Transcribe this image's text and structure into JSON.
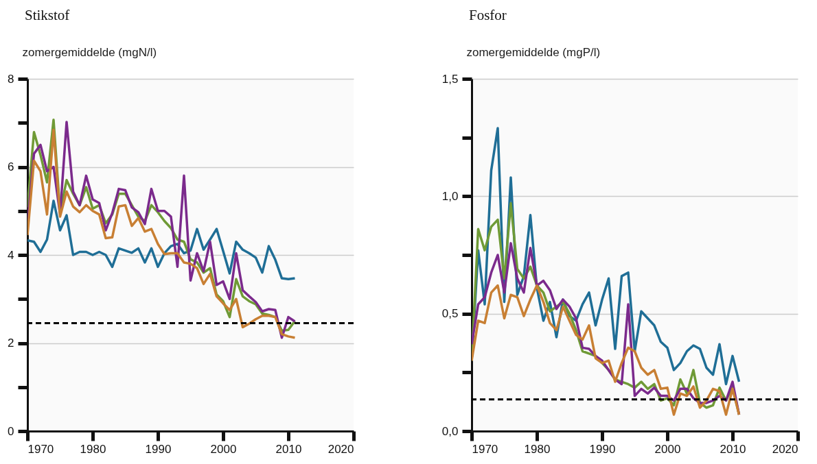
{
  "chart_data": [
    {
      "type": "line",
      "title": "Stikstof",
      "ylabel": "zomergemiddelde (mgN/l)",
      "x": [
        1970,
        1971,
        1972,
        1973,
        1974,
        1975,
        1976,
        1977,
        1978,
        1979,
        1980,
        1981,
        1982,
        1983,
        1984,
        1985,
        1986,
        1987,
        1988,
        1989,
        1990,
        1991,
        1992,
        1993,
        1994,
        1995,
        1996,
        1997,
        1998,
        1999,
        2000,
        2001,
        2002,
        2003,
        2004,
        2005,
        2006,
        2007,
        2008,
        2009,
        2010,
        2011
      ],
      "series": [
        {
          "color": "#1f6e96",
          "values": [
            4.33,
            4.3,
            4.07,
            4.35,
            5.23,
            4.56,
            4.9,
            4.0,
            4.07,
            4.07,
            4.0,
            4.07,
            4.0,
            3.73,
            4.15,
            4.1,
            4.05,
            4.15,
            3.83,
            4.15,
            3.73,
            4.04,
            4.2,
            4.25,
            4.04,
            4.1,
            4.59,
            4.12,
            4.35,
            4.59,
            4.09,
            3.58,
            4.3,
            4.12,
            4.04,
            3.94,
            3.6,
            4.2,
            3.89,
            3.47,
            3.45,
            3.47
          ]
        },
        {
          "color": "#6f9a36",
          "values": [
            5.08,
            6.79,
            6.27,
            5.65,
            7.07,
            4.97,
            5.7,
            5.39,
            5.13,
            5.54,
            5.05,
            5.13,
            4.72,
            4.92,
            5.39,
            5.39,
            5.13,
            4.87,
            4.77,
            5.13,
            4.97,
            4.77,
            4.61,
            4.35,
            4.3,
            3.9,
            3.83,
            3.6,
            3.7,
            3.1,
            2.95,
            2.59,
            3.45,
            3.06,
            2.95,
            2.88,
            2.67,
            2.64,
            2.59,
            2.28,
            2.3,
            2.5
          ]
        },
        {
          "color": "#7b2a8c",
          "values": [
            4.7,
            6.3,
            6.5,
            5.9,
            6.0,
            4.92,
            7.02,
            5.44,
            5.13,
            5.8,
            5.26,
            5.18,
            4.56,
            4.95,
            5.5,
            5.47,
            5.08,
            4.97,
            4.7,
            5.5,
            5.0,
            5.0,
            4.87,
            3.73,
            5.8,
            3.42,
            4.04,
            3.63,
            4.3,
            3.32,
            3.4,
            3.0,
            4.04,
            3.2,
            3.06,
            2.93,
            2.72,
            2.77,
            2.75,
            2.12,
            2.59,
            2.49
          ]
        },
        {
          "color": "#c87f33",
          "values": [
            4.45,
            6.14,
            5.9,
            4.92,
            6.84,
            4.87,
            5.44,
            5.1,
            4.97,
            5.13,
            5.0,
            4.92,
            4.38,
            4.4,
            5.1,
            5.13,
            4.66,
            4.84,
            4.53,
            4.59,
            4.25,
            4.02,
            4.04,
            4.04,
            3.83,
            3.8,
            3.7,
            3.34,
            3.57,
            3.06,
            2.9,
            2.75,
            3.0,
            2.36,
            2.44,
            2.54,
            2.62,
            2.62,
            2.59,
            2.2,
            2.15,
            2.12
          ]
        }
      ],
      "xlim": [
        1970,
        2020
      ],
      "xticks": [
        1970,
        1980,
        1990,
        2000,
        2010,
        2020
      ],
      "ylim": [
        0,
        8
      ],
      "yticks": [
        0,
        {
          "value": 1,
          "label": null
        },
        2,
        {
          "value": 3,
          "label": null
        },
        4,
        {
          "value": 5,
          "label": null
        },
        6,
        {
          "value": 7,
          "label": null
        },
        8
      ],
      "grid": "y",
      "legend": false,
      "line_style": "solid",
      "ref_lines": [
        {
          "axis": "y",
          "value": 2.45,
          "color": "#000000",
          "line_style": "dashed"
        }
      ]
    },
    {
      "type": "line",
      "title": "Fosfor",
      "ylabel": "zomergemiddelde (mgP/l)",
      "x": [
        1970,
        1971,
        1972,
        1973,
        1974,
        1975,
        1976,
        1977,
        1978,
        1979,
        1980,
        1981,
        1982,
        1983,
        1984,
        1985,
        1986,
        1987,
        1988,
        1989,
        1990,
        1991,
        1992,
        1993,
        1994,
        1995,
        1996,
        1997,
        1998,
        1999,
        2000,
        2001,
        2002,
        2003,
        2004,
        2005,
        2006,
        2007,
        2008,
        2009,
        2010,
        2011
      ],
      "series": [
        {
          "color": "#1f6e96",
          "values": [
            0.3,
            0.77,
            0.54,
            1.11,
            1.29,
            0.55,
            1.08,
            0.58,
            0.66,
            0.92,
            0.61,
            0.47,
            0.55,
            0.4,
            0.56,
            0.49,
            0.47,
            0.54,
            0.59,
            0.45,
            0.56,
            0.65,
            0.35,
            0.66,
            0.675,
            0.34,
            0.51,
            0.48,
            0.45,
            0.38,
            0.355,
            0.26,
            0.29,
            0.34,
            0.365,
            0.35,
            0.27,
            0.24,
            0.37,
            0.2,
            0.32,
            0.21
          ]
        },
        {
          "color": "#6f9a36",
          "values": [
            0.3,
            0.86,
            0.77,
            0.87,
            0.9,
            0.65,
            0.97,
            0.69,
            0.65,
            0.7,
            0.62,
            0.59,
            0.51,
            0.53,
            0.55,
            0.5,
            0.43,
            0.34,
            0.33,
            0.32,
            0.29,
            0.26,
            0.22,
            0.21,
            0.2,
            0.185,
            0.21,
            0.18,
            0.2,
            0.13,
            0.14,
            0.11,
            0.22,
            0.16,
            0.26,
            0.12,
            0.1,
            0.11,
            0.185,
            0.13,
            0.19,
            0.07
          ]
        },
        {
          "color": "#7b2a8c",
          "values": [
            0.37,
            0.54,
            0.57,
            0.675,
            0.75,
            0.59,
            0.8,
            0.65,
            0.59,
            0.78,
            0.62,
            0.64,
            0.6,
            0.52,
            0.56,
            0.53,
            0.48,
            0.355,
            0.35,
            0.32,
            0.3,
            0.26,
            0.22,
            0.2,
            0.54,
            0.15,
            0.18,
            0.16,
            0.185,
            0.15,
            0.15,
            0.13,
            0.18,
            0.18,
            0.14,
            0.12,
            0.12,
            0.13,
            0.15,
            0.13,
            0.21,
            0.07
          ]
        },
        {
          "color": "#c87f33",
          "values": [
            0.3,
            0.47,
            0.46,
            0.59,
            0.62,
            0.48,
            0.58,
            0.57,
            0.49,
            0.56,
            0.62,
            0.55,
            0.46,
            0.43,
            0.53,
            0.47,
            0.41,
            0.39,
            0.45,
            0.31,
            0.29,
            0.3,
            0.21,
            0.29,
            0.355,
            0.34,
            0.27,
            0.24,
            0.26,
            0.18,
            0.185,
            0.07,
            0.16,
            0.15,
            0.19,
            0.1,
            0.13,
            0.18,
            0.17,
            0.07,
            0.18,
            0.07
          ]
        }
      ],
      "xlim": [
        1970,
        2020
      ],
      "xticks": [
        1970,
        1980,
        1990,
        2000,
        2010,
        2020
      ],
      "ylim": [
        0,
        1.5
      ],
      "yticks": [
        {
          "value": 0,
          "label": "0,0"
        },
        {
          "value": 0.25,
          "label": null
        },
        {
          "value": 0.5,
          "label": "0,5"
        },
        {
          "value": 0.75,
          "label": null
        },
        {
          "value": 1,
          "label": "1,0"
        },
        {
          "value": 1.25,
          "label": null
        },
        {
          "value": 1.5,
          "label": "1,5"
        }
      ],
      "grid": "y",
      "legend": false,
      "line_style": "solid",
      "ref_lines": [
        {
          "axis": "y",
          "value": 0.135,
          "color": "#000000",
          "line_style": "dashed"
        }
      ]
    }
  ]
}
